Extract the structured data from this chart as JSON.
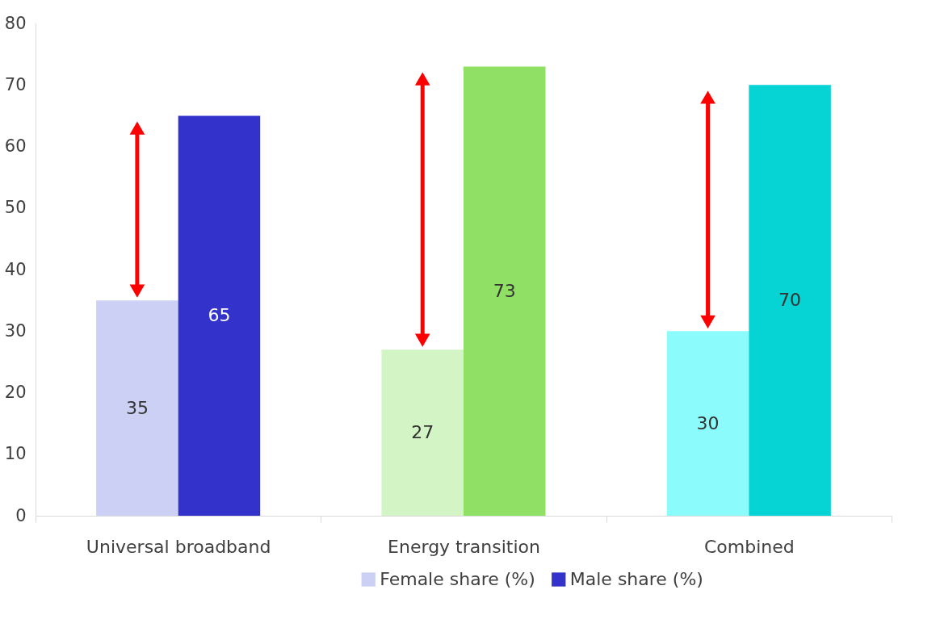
{
  "chart_data": {
    "type": "bar",
    "categories": [
      "Universal broadband",
      "Energy transition",
      "Combined"
    ],
    "series": [
      {
        "name": "Female share (%)",
        "color": "#ccd0f5",
        "colors": [
          "#ccd0f5",
          "#d3f4c4",
          "#8cfbfb"
        ],
        "values": [
          35,
          27,
          30
        ]
      },
      {
        "name": "Male share (%)",
        "color": "#3333cc",
        "colors": [
          "#3333cc",
          "#90e066",
          "#06d3d3"
        ],
        "values": [
          65,
          73,
          70
        ]
      }
    ],
    "ylim": [
      0,
      80
    ],
    "yticks": [
      0,
      10,
      20,
      30,
      40,
      50,
      60,
      70,
      80
    ],
    "data_labels": true,
    "grid": false,
    "legend": "bottom"
  }
}
